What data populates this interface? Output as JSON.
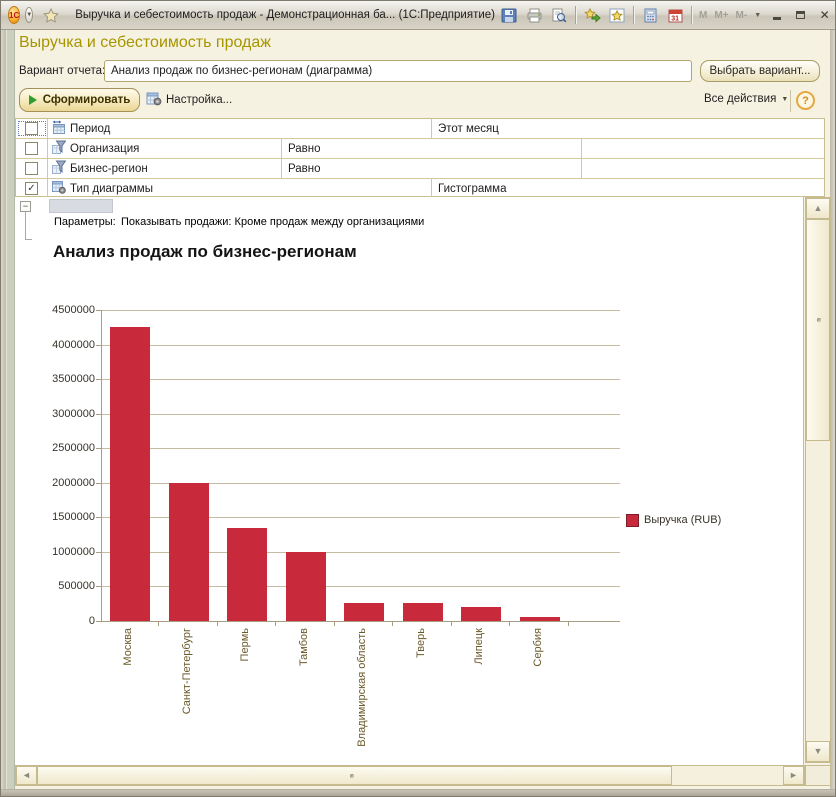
{
  "window": {
    "logo_text": "1С",
    "title": "Выручка и себестоимость продаж - Демонстрационная ба... (1С:Предприятие)",
    "calendar_day": "31",
    "memory_buttons": [
      "M",
      "M+",
      "M-"
    ]
  },
  "header": {
    "page_title": "Выручка и себестоимость продаж",
    "variant_label": "Вариант отчета:",
    "variant_value": "Анализ продаж по бизнес-регионам (диаграмма)",
    "choose_variant_button": "Выбрать вариант...",
    "generate_button": "Сформировать",
    "settings_button": "Настройка...",
    "all_actions_button": "Все действия",
    "help_button": "?"
  },
  "filters": {
    "rows": [
      {
        "checked": false,
        "focused": true,
        "icon": "period-icon",
        "name": "Период",
        "condition": "",
        "value": "Этот месяц",
        "name_col_wide": true
      },
      {
        "checked": false,
        "focused": false,
        "icon": "filter-icon",
        "name": "Организация",
        "condition": "Равно",
        "value": "",
        "name_col_wide": false
      },
      {
        "checked": false,
        "focused": false,
        "icon": "filter-icon",
        "name": "Бизнес-регион",
        "condition": "Равно",
        "value": "",
        "name_col_wide": false
      },
      {
        "checked": true,
        "focused": false,
        "icon": "chart-type-icon",
        "name": "Тип диаграммы",
        "condition": "",
        "value": "Гистограмма",
        "name_col_wide": true
      }
    ],
    "check_glyph": "✓"
  },
  "report": {
    "collapse_glyph": "−",
    "params_label": "Параметры:",
    "params_value": "Показывать продажи: Кроме продаж между организациями",
    "title": "Анализ продаж по бизнес-регионам"
  },
  "chart_data": {
    "type": "bar",
    "title": "Анализ продаж по бизнес-регионам",
    "categories": [
      "Москва",
      "Санкт-Петербург",
      "Пермь",
      "Тамбов",
      "Владимирская область",
      "Тверь",
      "Липецк",
      "Сербия"
    ],
    "series": [
      {
        "name": "Выручка (RUB)",
        "values": [
          4250000,
          2000000,
          1350000,
          1000000,
          260000,
          260000,
          200000,
          60000
        ]
      }
    ],
    "xlabel": "",
    "ylabel": "",
    "ylim": [
      0,
      4500000
    ],
    "ytick_step": 500000,
    "grid": true,
    "legend_position": "right",
    "bar_color": "#C8293B"
  },
  "colors": {
    "accent_title": "#A69500",
    "bar": "#C8293B",
    "window_bg": "#F6F2E2"
  }
}
